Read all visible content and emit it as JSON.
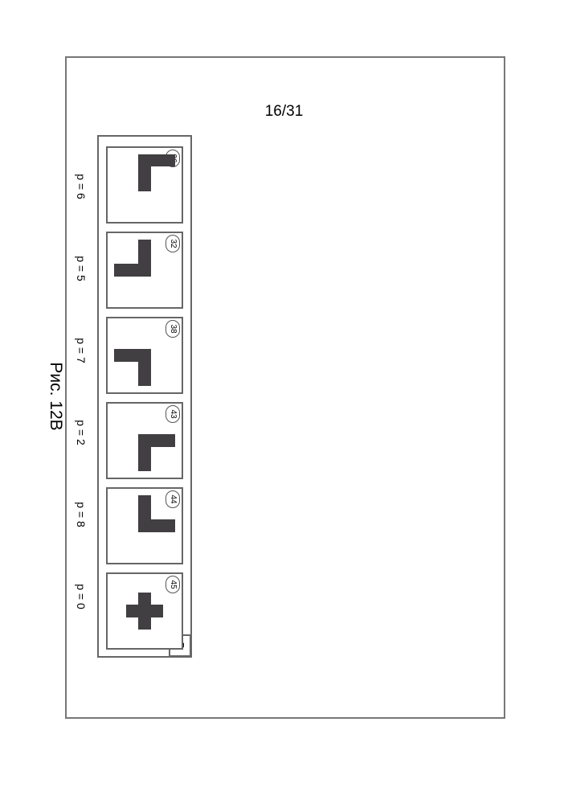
{
  "page": {
    "number_label": "16/31"
  },
  "caption": "Рис. 12B",
  "panel": {
    "badge": "B",
    "grid": {
      "cols": 5,
      "rows": 5
    },
    "shape_color": "#413f41",
    "border_color": "#666666",
    "cells": [
      {
        "badge": "26",
        "p_label": "p = 6",
        "filled": [
          [
            0,
            0
          ],
          [
            1,
            0
          ],
          [
            2,
            0
          ],
          [
            2,
            1
          ],
          [
            2,
            2
          ]
        ]
      },
      {
        "badge": "32",
        "p_label": "p = 5",
        "filled": [
          [
            2,
            0
          ],
          [
            2,
            1
          ],
          [
            2,
            2
          ],
          [
            3,
            2
          ],
          [
            4,
            2
          ]
        ]
      },
      {
        "badge": "38",
        "p_label": "p = 7",
        "filled": [
          [
            2,
            2
          ],
          [
            2,
            3
          ],
          [
            2,
            4
          ],
          [
            3,
            2
          ],
          [
            4,
            2
          ]
        ]
      },
      {
        "badge": "43",
        "p_label": "p = 2",
        "filled": [
          [
            0,
            2
          ],
          [
            1,
            2
          ],
          [
            2,
            2
          ],
          [
            2,
            3
          ],
          [
            2,
            4
          ]
        ]
      },
      {
        "badge": "44",
        "p_label": "p = 8",
        "filled": [
          [
            0,
            2
          ],
          [
            1,
            2
          ],
          [
            2,
            0
          ],
          [
            2,
            1
          ],
          [
            2,
            2
          ]
        ]
      },
      {
        "badge": "45",
        "p_label": "p = 0",
        "filled": [
          [
            1,
            2
          ],
          [
            2,
            1
          ],
          [
            2,
            2
          ],
          [
            2,
            3
          ],
          [
            3,
            2
          ]
        ]
      }
    ]
  }
}
